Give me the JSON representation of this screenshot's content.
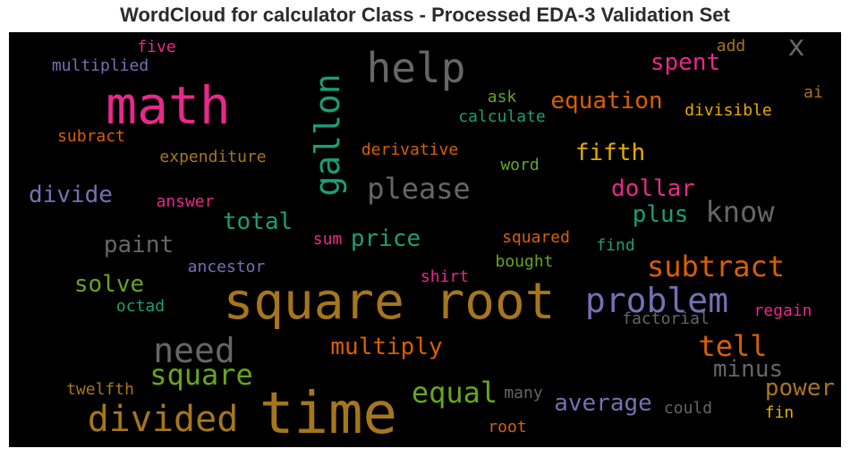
{
  "title": "WordCloud for calculator Class - Processed EDA-3 Validation Set",
  "colors": {
    "background": "#000000",
    "pink": "#e7298a",
    "orange": "#d95f02",
    "amber": "#e6ab02",
    "brown": "#a6761d",
    "teal": "#1b9e77",
    "purple": "#7570b3",
    "green": "#66a61e",
    "gray": "#666666"
  },
  "words": [
    {
      "text": "five",
      "color": "#e7298a"
    },
    {
      "text": "multiplied",
      "color": "#7570b3"
    },
    {
      "text": "math",
      "color": "#e7298a"
    },
    {
      "text": "subract",
      "color": "#d95f02"
    },
    {
      "text": "expenditure",
      "color": "#a6761d"
    },
    {
      "text": "divide",
      "color": "#7570b3"
    },
    {
      "text": "answer",
      "color": "#e7298a"
    },
    {
      "text": "total",
      "color": "#1b9e77"
    },
    {
      "text": "paint",
      "color": "#666666"
    },
    {
      "text": "ancestor",
      "color": "#7570b3"
    },
    {
      "text": "solve",
      "color": "#66a61e"
    },
    {
      "text": "octad",
      "color": "#1b9e77"
    },
    {
      "text": "need",
      "color": "#666666"
    },
    {
      "text": "square",
      "color": "#66a61e"
    },
    {
      "text": "twelfth",
      "color": "#a6761d"
    },
    {
      "text": "divided",
      "color": "#a6761d"
    },
    {
      "text": "time",
      "color": "#a6761d"
    },
    {
      "text": "gallon",
      "color": "#1b9e77"
    },
    {
      "text": "help",
      "color": "#666666"
    },
    {
      "text": "x",
      "color": "#666666"
    },
    {
      "text": "add",
      "color": "#a6761d"
    },
    {
      "text": "spent",
      "color": "#e7298a"
    },
    {
      "text": "ai",
      "color": "#a6761d"
    },
    {
      "text": "ask",
      "color": "#66a61e"
    },
    {
      "text": "equation",
      "color": "#d95f02"
    },
    {
      "text": "calculate",
      "color": "#1b9e77"
    },
    {
      "text": "divisible",
      "color": "#e6ab02"
    },
    {
      "text": "derivative",
      "color": "#d95f02"
    },
    {
      "text": "fifth",
      "color": "#e6ab02"
    },
    {
      "text": "word",
      "color": "#66a61e"
    },
    {
      "text": "please",
      "color": "#666666"
    },
    {
      "text": "dollar",
      "color": "#e7298a"
    },
    {
      "text": "plus",
      "color": "#1b9e77"
    },
    {
      "text": "know",
      "color": "#666666"
    },
    {
      "text": "sum",
      "color": "#e7298a"
    },
    {
      "text": "price",
      "color": "#1b9e77"
    },
    {
      "text": "squared",
      "color": "#d95f02"
    },
    {
      "text": "find",
      "color": "#1b9e77"
    },
    {
      "text": "bought",
      "color": "#66a61e"
    },
    {
      "text": "subtract",
      "color": "#d95f02"
    },
    {
      "text": "shirt",
      "color": "#e7298a"
    },
    {
      "text": "square root",
      "color": "#a6761d"
    },
    {
      "text": "problem",
      "color": "#7570b3"
    },
    {
      "text": "factorial",
      "color": "#666666"
    },
    {
      "text": "regain",
      "color": "#e7298a"
    },
    {
      "text": "multiply",
      "color": "#d95f02"
    },
    {
      "text": "tell",
      "color": "#d95f02"
    },
    {
      "text": "minus",
      "color": "#666666"
    },
    {
      "text": "equal",
      "color": "#66a61e"
    },
    {
      "text": "many",
      "color": "#666666"
    },
    {
      "text": "average",
      "color": "#7570b3"
    },
    {
      "text": "could",
      "color": "#666666"
    },
    {
      "text": "power",
      "color": "#a6761d"
    },
    {
      "text": "fin",
      "color": "#e6ab02"
    },
    {
      "text": "root",
      "color": "#d95f02"
    }
  ]
}
